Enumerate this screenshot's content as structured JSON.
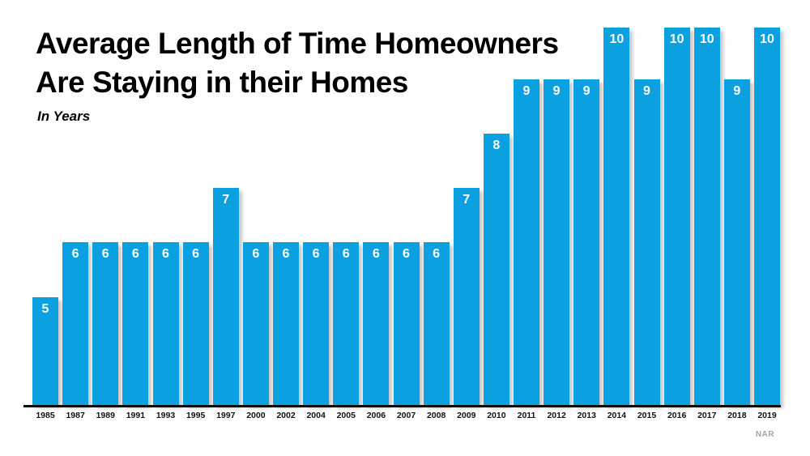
{
  "title": {
    "line1": "Average Length of Time Homeowners",
    "line2": "Are Staying in their Homes",
    "subtitle": "In Years"
  },
  "source": "NAR",
  "colors": {
    "bar": "#0ba1e1",
    "bar_label": "#ffffff",
    "axis": "#0a0a0a",
    "title": "#000000",
    "source": "#a3a3a3"
  },
  "chart_data": {
    "type": "bar",
    "title": "Average Length of Time Homeowners Are Staying in their Homes",
    "subtitle": "In Years",
    "xlabel": "",
    "ylabel": "Years",
    "ylim": [
      0,
      10
    ],
    "grid": false,
    "legend": "none",
    "data_labels": true,
    "source": "NAR",
    "categories": [
      "1985",
      "1987",
      "1989",
      "1991",
      "1993",
      "1995",
      "1997",
      "2000",
      "2002",
      "2004",
      "2005",
      "2006",
      "2007",
      "2008",
      "2009",
      "2010",
      "2011",
      "2012",
      "2013",
      "2014",
      "2015",
      "2016",
      "2017",
      "2018",
      "2019"
    ],
    "values": [
      5,
      6,
      6,
      6,
      6,
      6,
      7,
      6,
      6,
      6,
      6,
      6,
      6,
      6,
      7,
      8,
      9,
      9,
      9,
      10,
      9,
      10,
      10,
      9,
      10
    ]
  }
}
